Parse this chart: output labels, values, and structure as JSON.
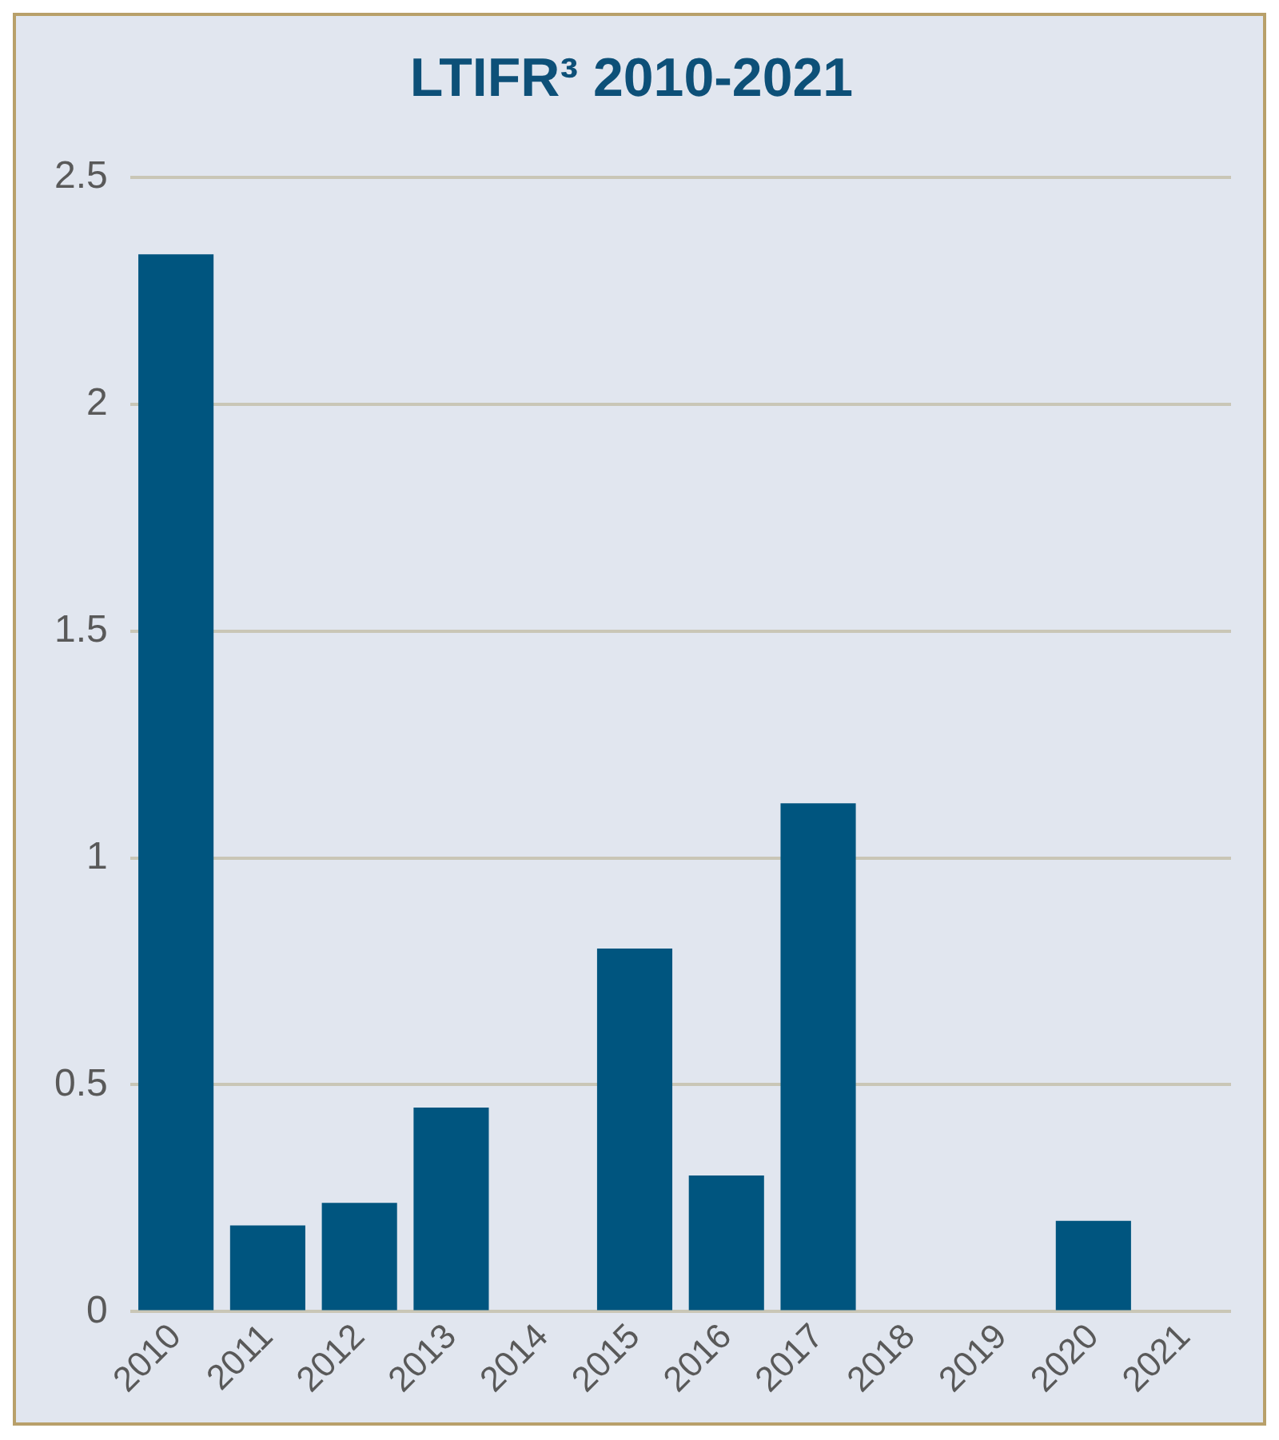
{
  "chart_data": {
    "type": "bar",
    "title": "LTIFR³ 2010-2021",
    "categories": [
      "2010",
      "2011",
      "2012",
      "2013",
      "2014",
      "2015",
      "2016",
      "2017",
      "2018",
      "2019",
      "2020",
      "2021"
    ],
    "values": [
      2.33,
      0.19,
      0.24,
      0.45,
      0,
      0.8,
      0.3,
      1.12,
      0,
      0,
      0.2,
      0
    ],
    "color": "#00557f",
    "ylim": [
      0,
      2.5
    ],
    "yticks": [
      0,
      0.5,
      1,
      1.5,
      2,
      2.5
    ],
    "grid": "y",
    "legend": false
  }
}
